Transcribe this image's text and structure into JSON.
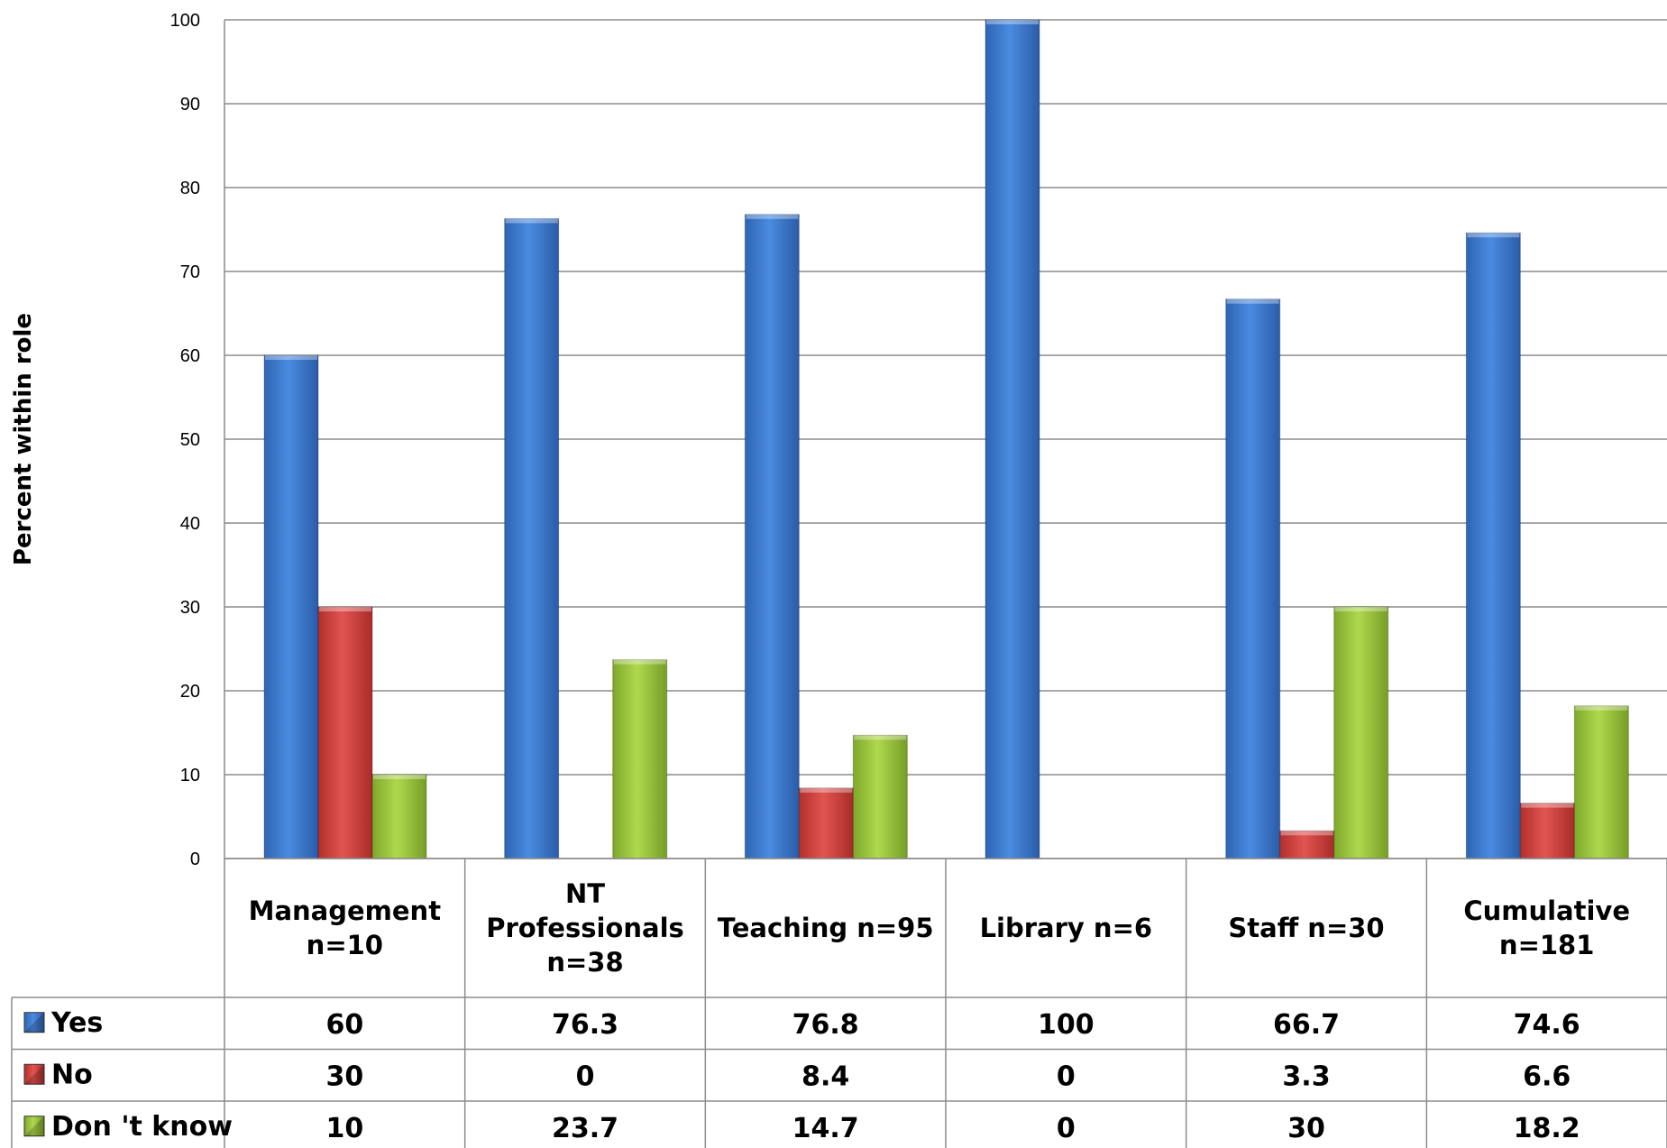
{
  "chart_data": {
    "type": "bar",
    "title": "",
    "xlabel": "",
    "ylabel": "Percent within role",
    "ylim": [
      0,
      100
    ],
    "yticks": [
      0,
      10,
      20,
      30,
      40,
      50,
      60,
      70,
      80,
      90,
      100
    ],
    "grid": true,
    "legend_placement": "data-table-left",
    "categories": [
      [
        "Management",
        "n=10"
      ],
      [
        "NT",
        "Professionals",
        "n=38"
      ],
      [
        "Teaching n=95"
      ],
      [
        "Library n=6"
      ],
      [
        "Staff n=30"
      ],
      [
        "Cumulative",
        "n=181"
      ]
    ],
    "series": [
      {
        "name": "Yes",
        "color": "#3F7FD5",
        "values": [
          60,
          76.3,
          76.8,
          100,
          66.7,
          74.6
        ]
      },
      {
        "name": "No",
        "color": "#D9433F",
        "values": [
          30,
          0,
          8.4,
          0,
          3.3,
          6.6
        ]
      },
      {
        "name": "Don 't know",
        "color": "#9BC83A",
        "values": [
          10,
          23.7,
          14.7,
          0,
          30,
          18.2
        ]
      }
    ]
  }
}
